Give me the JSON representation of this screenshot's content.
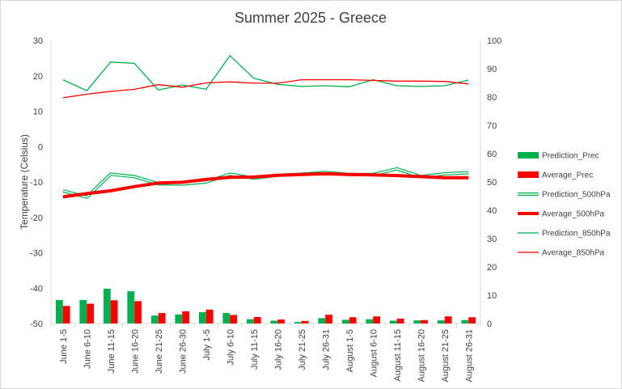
{
  "chart_data": {
    "type": "bar",
    "title": "Summer 2025 - Greece",
    "ylabel": "Temperature (Celsius)",
    "ylim": [
      -50,
      30
    ],
    "y2lim": [
      0,
      100
    ],
    "yticks": [
      "30",
      "20",
      "10",
      "0",
      "-10",
      "-20",
      "-30",
      "-40",
      "-50"
    ],
    "y2ticks": [
      "100",
      "90",
      "80",
      "70",
      "60",
      "50",
      "40",
      "30",
      "20",
      "10",
      "0"
    ],
    "categories": [
      "June 1-5",
      "June 6-10",
      "June 11-15",
      "June 16-20",
      "June 21-25",
      "June 26-30",
      "July 1-5",
      "July 6-10",
      "July 11-15",
      "July 16-20",
      "July 21-25",
      "July 26-31",
      "August 1-5",
      "August 6-10",
      "August 11-15",
      "August 16-20",
      "August 21-25",
      "August 26-31"
    ],
    "legend_position": "right",
    "series": [
      {
        "name": "Prediction_Prec",
        "type": "bar",
        "axis": "right",
        "color": "#00b050",
        "values": [
          8.3,
          8.3,
          12.3,
          11.4,
          2.8,
          3.2,
          4.0,
          3.7,
          1.5,
          1.0,
          0.5,
          1.9,
          1.3,
          1.5,
          1.0,
          1.1,
          1.1,
          1.2
        ]
      },
      {
        "name": "Average_Prec",
        "type": "bar",
        "axis": "right",
        "color": "#ff0000",
        "values": [
          6.2,
          7.0,
          8.2,
          7.9,
          3.7,
          4.3,
          4.9,
          3.0,
          2.3,
          1.4,
          0.9,
          3.1,
          2.2,
          2.5,
          1.7,
          1.2,
          2.5,
          2.2
        ]
      },
      {
        "name": "Prediction_500hPa",
        "type": "line",
        "axis": "left",
        "style": "double",
        "color": "#00b050",
        "values": [
          -12.5,
          -14.3,
          -7.8,
          -8.5,
          -10.5,
          -10.6,
          -10.0,
          -7.8,
          -8.9,
          -8.1,
          -7.8,
          -7.3,
          -7.9,
          -7.9,
          -6.3,
          -8.5,
          -7.7,
          -7.4
        ]
      },
      {
        "name": "Average_500hPa",
        "type": "line",
        "axis": "left",
        "style": "thick",
        "color": "#ff0000",
        "values": [
          -14.2,
          -13.3,
          -12.5,
          -11.3,
          -10.3,
          -10.1,
          -9.3,
          -8.7,
          -8.6,
          -8.1,
          -7.9,
          -7.7,
          -7.9,
          -8.0,
          -8.2,
          -8.5,
          -8.8,
          -8.8
        ]
      },
      {
        "name": "Prediction_850hPa",
        "type": "line",
        "axis": "left",
        "style": "thin",
        "color": "#00b050",
        "values": [
          18.9,
          15.8,
          23.9,
          23.5,
          16.0,
          17.4,
          16.2,
          25.7,
          19.3,
          17.6,
          17.0,
          17.2,
          16.9,
          18.9,
          17.2,
          17.0,
          17.2,
          18.8
        ]
      },
      {
        "name": "Average_850hPa",
        "type": "line",
        "axis": "left",
        "style": "thin",
        "color": "#ff0000",
        "values": [
          13.8,
          14.8,
          15.6,
          16.2,
          17.5,
          16.8,
          18.0,
          18.3,
          17.9,
          17.9,
          18.9,
          18.9,
          18.9,
          18.7,
          18.5,
          18.5,
          18.4,
          17.7
        ]
      }
    ]
  }
}
